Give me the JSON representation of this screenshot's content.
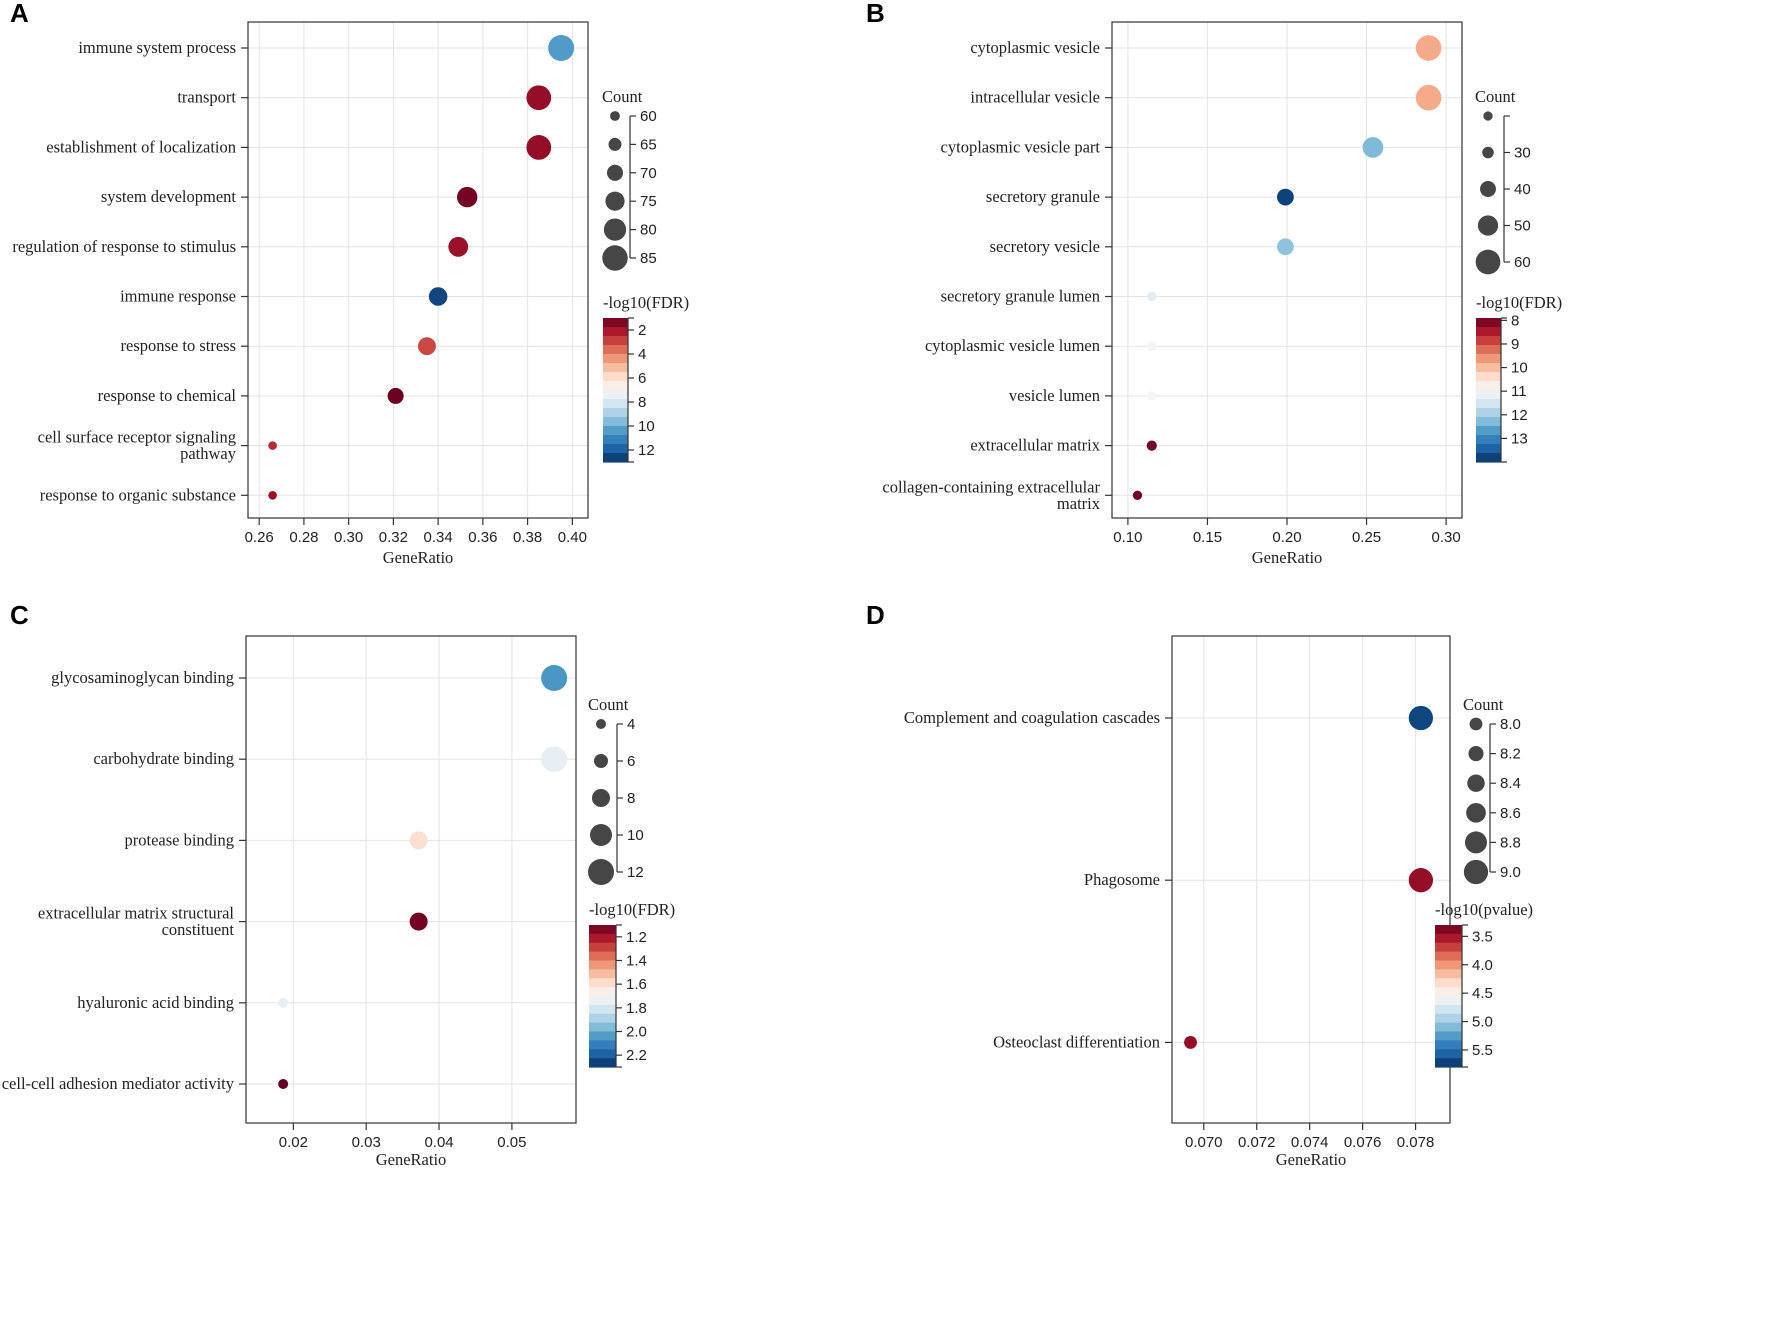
{
  "colors": {
    "scale": [
      "#67001f",
      "#b2182b",
      "#d6604d",
      "#f4a582",
      "#fddbc7",
      "#f7f7f7",
      "#d1e5f0",
      "#92c5de",
      "#4393c3",
      "#2166ac",
      "#053061"
    ],
    "count_dot": "#464646",
    "grid": "#e3e3e3",
    "axis": "#333333"
  },
  "chart_data": [
    {
      "panel": "A",
      "type": "scatter",
      "xlabel": "GeneRatio",
      "xlim": [
        0.255,
        0.407
      ],
      "xticks": [
        0.26,
        0.28,
        0.3,
        0.32,
        0.34,
        0.36,
        0.38,
        0.4
      ],
      "xtick_labels": [
        "0.26",
        "0.28",
        "0.30",
        "0.32",
        "0.34",
        "0.36",
        "0.38",
        "0.40"
      ],
      "categories": [
        "immune system process",
        "transport",
        "establishment of localization",
        "system development",
        "regulation of response to stimulus",
        "immune response",
        "response to stress",
        "response to chemical",
        [
          "cell surface receptor signaling",
          "pathway"
        ],
        "response to organic substance"
      ],
      "points": [
        {
          "x": 0.395,
          "count": 86,
          "color": 10.4
        },
        {
          "x": 0.385,
          "count": 84,
          "color": 1.7
        },
        {
          "x": 0.385,
          "count": 84,
          "color": 1.7
        },
        {
          "x": 0.353,
          "count": 77,
          "color": 1.2
        },
        {
          "x": 0.349,
          "count": 76,
          "color": 1.8
        },
        {
          "x": 0.34,
          "count": 74,
          "color": 12.5
        },
        {
          "x": 0.335,
          "count": 73,
          "color": 3.0
        },
        {
          "x": 0.321,
          "count": 70,
          "color": 1.1
        },
        {
          "x": 0.266,
          "count": 58,
          "color": 2.5
        },
        {
          "x": 0.266,
          "count": 58,
          "color": 1.8
        }
      ],
      "size_legend": {
        "title": "Count",
        "values": [
          60,
          65,
          70,
          75,
          80,
          85
        ],
        "labels": [
          "60",
          "65",
          "70",
          "75",
          "80",
          "85"
        ],
        "min": 57,
        "max": 86
      },
      "color_legend": {
        "title": "-log10(FDR)",
        "min": 1,
        "max": 13,
        "reverse": false,
        "ticks": [
          2,
          4,
          6,
          8,
          10,
          12
        ],
        "labels": [
          "2",
          "4",
          "6",
          "8",
          "10",
          "12"
        ]
      }
    },
    {
      "panel": "B",
      "type": "scatter",
      "xlabel": "GeneRatio",
      "xlim": [
        0.09,
        0.31
      ],
      "xticks": [
        0.1,
        0.15,
        0.2,
        0.25,
        0.3
      ],
      "xtick_labels": [
        "0.10",
        "0.15",
        "0.20",
        "0.25",
        "0.30"
      ],
      "categories": [
        "cytoplasmic vesicle",
        "intracellular vesicle",
        "cytoplasmic vesicle part",
        "secretory granule",
        "secretory vesicle",
        "secretory granule lumen",
        "cytoplasmic vesicle lumen",
        "vesicle lumen",
        "extracellular matrix",
        [
          "collagen-containing extracellular",
          "matrix"
        ]
      ],
      "points": [
        {
          "x": 0.289,
          "count": 62,
          "color": 9.8
        },
        {
          "x": 0.289,
          "count": 62,
          "color": 9.8
        },
        {
          "x": 0.254,
          "count": 51,
          "color": 12.3
        },
        {
          "x": 0.199,
          "count": 42,
          "color": 13.8
        },
        {
          "x": 0.199,
          "count": 42,
          "color": 12.2
        },
        {
          "x": 0.115,
          "count": 25,
          "color": 11.3
        },
        {
          "x": 0.115,
          "count": 25,
          "color": 10.9
        },
        {
          "x": 0.115,
          "count": 25,
          "color": 10.9
        },
        {
          "x": 0.115,
          "count": 27,
          "color": 8.0
        },
        {
          "x": 0.106,
          "count": 25,
          "color": 8.0
        }
      ],
      "size_legend": {
        "title": "Count",
        "values": [
          25,
          30,
          40,
          50,
          60
        ],
        "labels": [
          "",
          "30",
          "40",
          "50",
          "60"
        ],
        "min": 22,
        "max": 63
      },
      "color_legend": {
        "title": "-log10(FDR)",
        "min": 7.9,
        "max": 14.0,
        "reverse": false,
        "ticks": [
          8,
          9,
          10,
          11,
          12,
          13
        ],
        "labels": [
          "8",
          "9",
          "10",
          "11",
          "12",
          "13"
        ]
      }
    },
    {
      "panel": "C",
      "type": "scatter",
      "xlabel": "GeneRatio",
      "xlim": [
        0.0135,
        0.0588
      ],
      "xticks": [
        0.02,
        0.03,
        0.04,
        0.05
      ],
      "xtick_labels": [
        "0.02",
        "0.03",
        "0.04",
        "0.05"
      ],
      "categories": [
        "glycosaminoglycan binding",
        "carbohydrate binding",
        "protease binding",
        [
          "extracellular matrix structural",
          "constituent"
        ],
        "hyaluronic acid binding",
        "cell-cell adhesion mediator activity"
      ],
      "points": [
        {
          "x": 0.0558,
          "count": 12,
          "color": 2.05
        },
        {
          "x": 0.0558,
          "count": 12,
          "color": 1.75
        },
        {
          "x": 0.0372,
          "count": 8,
          "color": 1.6
        },
        {
          "x": 0.0372,
          "count": 8,
          "color": 1.12
        },
        {
          "x": 0.0186,
          "count": 4,
          "color": 1.75
        },
        {
          "x": 0.0186,
          "count": 4,
          "color": 1.1
        }
      ],
      "size_legend": {
        "title": "Count",
        "values": [
          4,
          6,
          8,
          10,
          12
        ],
        "labels": [
          "4",
          "6",
          "8",
          "10",
          "12"
        ],
        "min": 3,
        "max": 13
      },
      "color_legend": {
        "title": "-log10(FDR)",
        "min": 1.1,
        "max": 2.3,
        "reverse": false,
        "ticks": [
          1.2,
          1.4,
          1.6,
          1.8,
          2.0,
          2.2
        ],
        "labels": [
          "1.2",
          "1.4",
          "1.6",
          "1.8",
          "2.0",
          "2.2"
        ]
      }
    },
    {
      "panel": "D",
      "type": "scatter",
      "xlabel": "GeneRatio",
      "xlim": [
        0.0688,
        0.0793
      ],
      "xticks": [
        0.07,
        0.072,
        0.074,
        0.076,
        0.078
      ],
      "xtick_labels": [
        "0.070",
        "0.072",
        "0.074",
        "0.076",
        "0.078"
      ],
      "categories": [
        "Complement and coagulation cascades",
        "Phagosome",
        "Osteoclast differentiation"
      ],
      "points": [
        {
          "x": 0.0782,
          "count": 9.0,
          "color": 5.7
        },
        {
          "x": 0.0782,
          "count": 9.0,
          "color": 3.45
        },
        {
          "x": 0.0695,
          "count": 8.0,
          "color": 3.45
        }
      ],
      "size_legend": {
        "title": "Count",
        "values": [
          8.0,
          8.2,
          8.4,
          8.6,
          8.8,
          9.0
        ],
        "labels": [
          "8.0",
          "8.2",
          "8.4",
          "8.6",
          "8.8",
          "9.0"
        ],
        "min": 7.75,
        "max": 9.15
      },
      "color_legend": {
        "title": "-log10(pvalue)",
        "min": 3.3,
        "max": 5.8,
        "reverse": false,
        "ticks": [
          3.5,
          4.0,
          4.5,
          5.0,
          5.5
        ],
        "labels": [
          "3.5",
          "4.0",
          "4.5",
          "5.0",
          "5.5"
        ]
      }
    }
  ]
}
